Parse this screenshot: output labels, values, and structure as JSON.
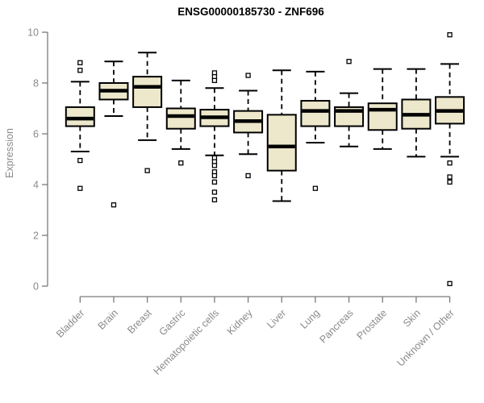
{
  "colors": {
    "box_fill": "#EDE7CB",
    "box_border": "#000000",
    "median": "#000000",
    "whisker": "#000000",
    "outlier_fill": "#ffffff",
    "outlier_border": "#000000",
    "axis": "#7a7a7a",
    "tick_text": "#8a8a8a",
    "title_text": "#000000",
    "background": "#ffffff"
  },
  "chart_data": {
    "type": "box",
    "title": "ENSG00000185730 - ZNF696",
    "xlabel": "",
    "ylabel": "Expression",
    "ylim": [
      0,
      10
    ],
    "yticks": [
      0,
      2,
      4,
      6,
      8,
      10
    ],
    "grid": false,
    "legend": false,
    "categories": [
      "Bladder",
      "Brain",
      "Breast",
      "Gastric",
      "Hematopoietic cells",
      "Kidney",
      "Liver",
      "Lung",
      "Pancreas",
      "Prostate",
      "Skin",
      "Unknown / Other"
    ],
    "boxes": [
      {
        "category": "Bladder",
        "whisker_low": 5.3,
        "q1": 6.3,
        "median": 6.6,
        "q3": 7.05,
        "whisker_high": 8.05,
        "outliers": [
          8.8,
          8.5,
          4.95,
          3.85
        ]
      },
      {
        "category": "Brain",
        "whisker_low": 6.7,
        "q1": 7.35,
        "median": 7.7,
        "q3": 8.0,
        "whisker_high": 8.85,
        "outliers": [
          3.2
        ]
      },
      {
        "category": "Breast",
        "whisker_low": 5.75,
        "q1": 7.05,
        "median": 7.85,
        "q3": 8.25,
        "whisker_high": 9.2,
        "outliers": [
          4.55
        ]
      },
      {
        "category": "Gastric",
        "whisker_low": 5.4,
        "q1": 6.2,
        "median": 6.7,
        "q3": 7.0,
        "whisker_high": 8.1,
        "outliers": [
          4.85
        ]
      },
      {
        "category": "Hematopoietic cells",
        "whisker_low": 5.15,
        "q1": 6.3,
        "median": 6.65,
        "q3": 6.95,
        "whisker_high": 7.8,
        "outliers": [
          8.4,
          8.25,
          8.1,
          5.05,
          4.9,
          4.75,
          4.5,
          4.35,
          4.1,
          3.7,
          3.4
        ]
      },
      {
        "category": "Kidney",
        "whisker_low": 5.2,
        "q1": 6.05,
        "median": 6.5,
        "q3": 6.9,
        "whisker_high": 7.7,
        "outliers": [
          8.3,
          4.35
        ]
      },
      {
        "category": "Liver",
        "whisker_low": 3.35,
        "q1": 4.55,
        "median": 5.5,
        "q3": 6.75,
        "whisker_high": 8.5,
        "outliers": []
      },
      {
        "category": "Lung",
        "whisker_low": 5.65,
        "q1": 6.3,
        "median": 6.9,
        "q3": 7.3,
        "whisker_high": 8.45,
        "outliers": [
          3.85
        ]
      },
      {
        "category": "Pancreas",
        "whisker_low": 5.5,
        "q1": 6.3,
        "median": 6.9,
        "q3": 7.05,
        "whisker_high": 7.6,
        "outliers": [
          8.85
        ]
      },
      {
        "category": "Prostate",
        "whisker_low": 5.4,
        "q1": 6.15,
        "median": 6.95,
        "q3": 7.2,
        "whisker_high": 8.55,
        "outliers": []
      },
      {
        "category": "Skin",
        "whisker_low": 5.1,
        "q1": 6.2,
        "median": 6.75,
        "q3": 7.35,
        "whisker_high": 8.55,
        "outliers": []
      },
      {
        "category": "Unknown / Other",
        "whisker_low": 5.1,
        "q1": 6.4,
        "median": 6.9,
        "q3": 7.45,
        "whisker_high": 8.75,
        "outliers": [
          9.9,
          4.85,
          4.3,
          4.1,
          0.1
        ]
      }
    ]
  }
}
